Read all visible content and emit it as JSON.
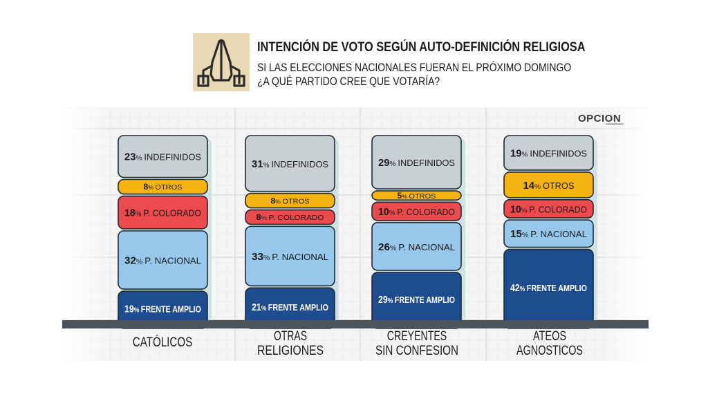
{
  "header": {
    "title": "INTENCIÓN DE VOTO SEGÚN AUTO-DEFINICIÓN RELIGIOSA",
    "subtitle_line1": "SI LAS ELECCIONES NACIONALES FUERAN EL PRÓXIMO DOMINGO",
    "subtitle_line2": "¿A QUÉ PARTIDO CREE QUE VOTARÍA?",
    "icon": "praying-hands-icon"
  },
  "brand": {
    "name": "OPCION",
    "tagline": "consultores"
  },
  "chart_data": {
    "type": "bar",
    "stacked": true,
    "grid": true,
    "categories": [
      [
        "CATÓLICOS"
      ],
      [
        "OTRAS",
        "RELIGIONES"
      ],
      [
        "CREYENTES",
        "SIN CONFESION"
      ],
      [
        "ATEOS",
        "AGNOSTICOS"
      ]
    ],
    "series": [
      {
        "name": "FRENTE AMPLIO",
        "color": "#1d4d8f",
        "text_color": "#ffffff",
        "values": [
          19,
          21,
          29,
          42
        ]
      },
      {
        "name": "P. NACIONAL",
        "color": "#97c8eb",
        "text_color": "#1a1a1a",
        "values": [
          32,
          33,
          26,
          15
        ]
      },
      {
        "name": "P. COLORADO",
        "color": "#ec4a4c",
        "text_color": "#1a1a1a",
        "values": [
          18,
          8,
          10,
          10
        ]
      },
      {
        "name": "OTROS",
        "color": "#f6b413",
        "text_color": "#1a1a1a",
        "values": [
          8,
          8,
          5,
          14
        ]
      },
      {
        "name": "INDEFINIDOS",
        "color": "#c8d0d3",
        "text_color": "#1a1a1a",
        "values": [
          23,
          31,
          29,
          19
        ]
      }
    ],
    "value_suffix": "%",
    "ylim": [
      0,
      100
    ]
  }
}
